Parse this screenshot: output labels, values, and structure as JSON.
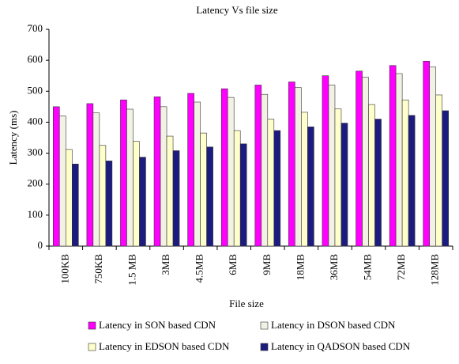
{
  "chart_data": {
    "type": "bar",
    "title": "Latency Vs file size",
    "x_label": "File size",
    "y_label": "Latency (ms)",
    "categories": [
      "100KB",
      "750KB",
      "1.5 MB",
      "3MB",
      "4.5MB",
      "6MB",
      "9MB",
      "18MB",
      "36MB",
      "54MB",
      "72MB",
      "128MB"
    ],
    "series": [
      {
        "name": "Latency in SON based CDN",
        "color": "#ff00ff",
        "values": [
          450,
          460,
          472,
          482,
          493,
          508,
          520,
          530,
          550,
          565,
          583,
          597
        ]
      },
      {
        "name": "Latency in DSON based CDN",
        "color": "#f2f2e4",
        "values": [
          420,
          430,
          442,
          450,
          465,
          480,
          490,
          512,
          520,
          545,
          557,
          578
        ]
      },
      {
        "name": "Latency in EDSON based CDN",
        "color": "#ffffcc",
        "values": [
          312,
          325,
          338,
          355,
          365,
          373,
          410,
          432,
          443,
          457,
          472,
          488
        ]
      },
      {
        "name": "Latency in QADSON based CDN",
        "color": "#1c1c80",
        "values": [
          265,
          275,
          287,
          308,
          320,
          330,
          373,
          385,
          397,
          410,
          422,
          437
        ]
      }
    ],
    "ylim": [
      0,
      700
    ],
    "yticks": [
      0,
      100,
      200,
      300,
      400,
      500,
      600,
      700
    ],
    "grid": false,
    "legend": "bottom"
  }
}
